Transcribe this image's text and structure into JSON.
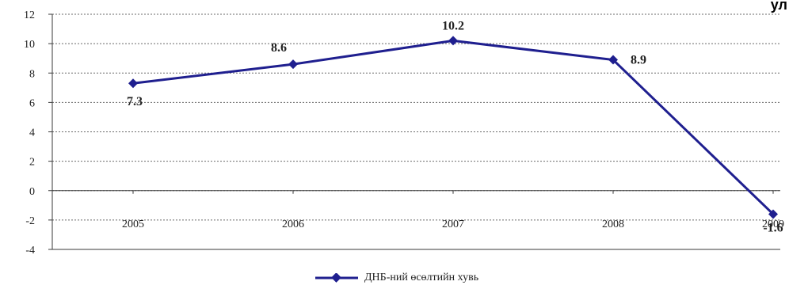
{
  "corner_text": "ул",
  "colors": {
    "series_line": "#1f1f8f",
    "grid": "#6a6a6a",
    "axis": "#3a3a3a",
    "text": "#222222"
  },
  "chart_data": {
    "type": "line",
    "title": "",
    "xlabel": "",
    "ylabel": "",
    "categories": [
      "2005",
      "2006",
      "2007",
      "2008",
      "2009"
    ],
    "series": [
      {
        "name": "ДНБ-ний өсөлтийн хувь",
        "values": [
          7.3,
          8.6,
          10.2,
          8.9,
          -1.6
        ],
        "data_labels": [
          "7.3",
          "8.6",
          "10.2",
          "8.9",
          "-1.6"
        ],
        "marker": "diamond"
      }
    ],
    "ylim": [
      -4,
      12
    ],
    "yticks": [
      -4,
      -2,
      0,
      2,
      4,
      6,
      8,
      10,
      12
    ],
    "ytick_labels": [
      "-4",
      "-2",
      "0",
      "2",
      "4",
      "6",
      "8",
      "10",
      "12"
    ],
    "grid": true,
    "legend": "bottom-center"
  }
}
